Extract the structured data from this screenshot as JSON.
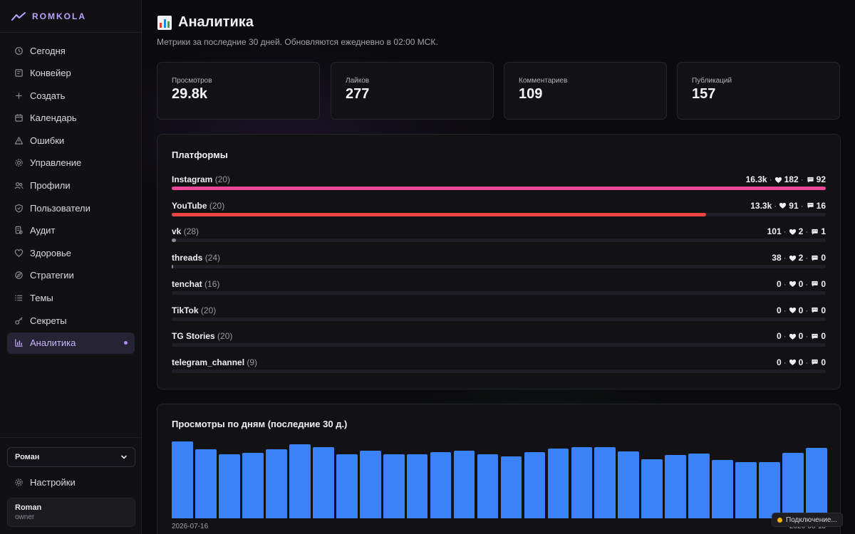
{
  "brand": {
    "name": "ROMKOLA",
    "accent": "#b9a3ff"
  },
  "sidebar": {
    "items": [
      {
        "label": "Сегодня",
        "icon": "clock-icon"
      },
      {
        "label": "Конвейер",
        "icon": "pipeline-icon"
      },
      {
        "label": "Создать",
        "icon": "plus-icon"
      },
      {
        "label": "Календарь",
        "icon": "calendar-icon"
      },
      {
        "label": "Ошибки",
        "icon": "warning-icon"
      },
      {
        "label": "Управление",
        "icon": "gear-icon"
      },
      {
        "label": "Профили",
        "icon": "users-icon"
      },
      {
        "label": "Пользователи",
        "icon": "shield-icon"
      },
      {
        "label": "Аудит",
        "icon": "audit-icon"
      },
      {
        "label": "Здоровье",
        "icon": "heart-icon"
      },
      {
        "label": "Стратегии",
        "icon": "strategy-icon"
      },
      {
        "label": "Темы",
        "icon": "list-icon"
      },
      {
        "label": "Секреты",
        "icon": "key-icon"
      },
      {
        "label": "Аналитика",
        "icon": "bar-chart-icon",
        "active": true
      }
    ],
    "profile_select": {
      "value": "Роман"
    },
    "settings_label": "Настройки",
    "user": {
      "name": "Roman",
      "role": "owner"
    }
  },
  "header": {
    "title": "Аналитика",
    "subtitle": "Метрики за последние 30 дней. Обновляются ежедневно в 02:00 МСК."
  },
  "stats": [
    {
      "label": "Просмотров",
      "value": "29.8k"
    },
    {
      "label": "Лайков",
      "value": "277"
    },
    {
      "label": "Комментариев",
      "value": "109"
    },
    {
      "label": "Публикаций",
      "value": "157"
    }
  ],
  "platforms": {
    "title": "Платформы",
    "items": [
      {
        "name": "Instagram",
        "count": "(20)",
        "views": "16.3k",
        "likes": "182",
        "comments": "92",
        "share": 1.0,
        "color": "#ec4899"
      },
      {
        "name": "YouTube",
        "count": "(20)",
        "views": "13.3k",
        "likes": "91",
        "comments": "16",
        "share": 0.817,
        "color": "#ef4444"
      },
      {
        "name": "vk",
        "count": "(28)",
        "views": "101",
        "likes": "2",
        "comments": "1",
        "share": 0.0062,
        "color": "#8a8a93"
      },
      {
        "name": "threads",
        "count": "(24)",
        "views": "38",
        "likes": "2",
        "comments": "0",
        "share": 0.0023,
        "color": "#8a8a93"
      },
      {
        "name": "tenchat",
        "count": "(16)",
        "views": "0",
        "likes": "0",
        "comments": "0",
        "share": 0,
        "color": "#8a8a93"
      },
      {
        "name": "TikTok",
        "count": "(20)",
        "views": "0",
        "likes": "0",
        "comments": "0",
        "share": 0,
        "color": "#8a8a93"
      },
      {
        "name": "TG Stories",
        "count": "(20)",
        "views": "0",
        "likes": "0",
        "comments": "0",
        "share": 0,
        "color": "#8a8a93"
      },
      {
        "name": "telegram_channel",
        "count": "(9)",
        "views": "0",
        "likes": "0",
        "comments": "0",
        "share": 0,
        "color": "#8a8a93"
      }
    ]
  },
  "chart_data": {
    "type": "bar",
    "title": "Просмотры по дням (последние 30 д.)",
    "color": "#3b82f6",
    "x_start_label": "2026-07-16",
    "x_end_label": "2026-08-13",
    "relative_values": [
      1.0,
      0.9,
      0.83,
      0.85,
      0.9,
      0.96,
      0.93,
      0.83,
      0.88,
      0.83,
      0.83,
      0.86,
      0.88,
      0.83,
      0.81,
      0.86,
      0.91,
      0.93,
      0.93,
      0.87,
      0.77,
      0.82,
      0.84,
      0.76,
      0.73,
      0.73,
      0.85,
      0.92
    ]
  },
  "toast": {
    "text": "Подключение..."
  }
}
